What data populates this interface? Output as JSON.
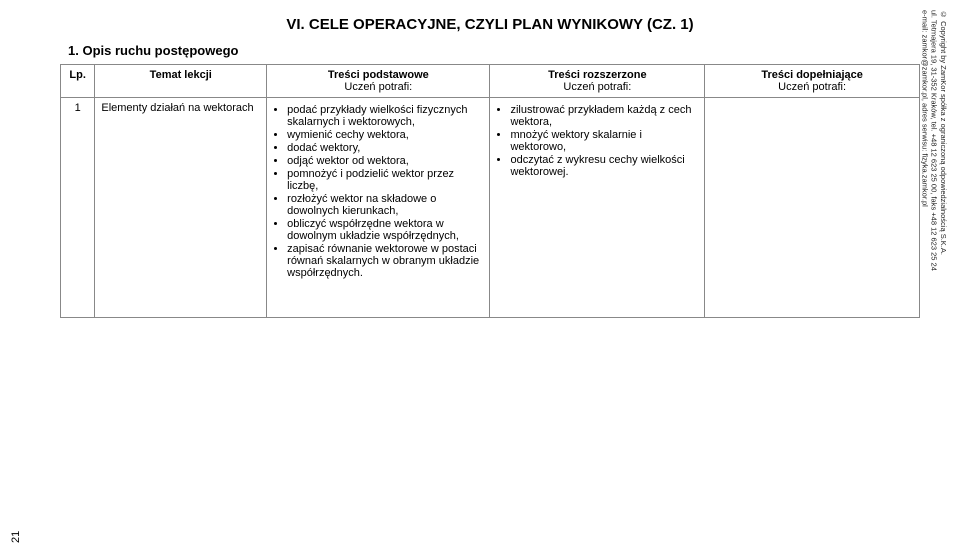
{
  "title": "VI. CELE OPERACYJNE, CZYLI PLAN WYNIKOWY (CZ. 1)",
  "section_heading": "1. Opis ruchu postępowego",
  "table": {
    "columns": {
      "lp": "Lp.",
      "temat": "Temat lekcji",
      "podstawowe_title": "Treści podstawowe",
      "rozszerzone_title": "Treści rozszerzone",
      "dopelniajace_title": "Treści dopełniające",
      "sublabel": "Uczeń potrafi:"
    },
    "row1": {
      "lp": "1",
      "temat": "Elementy działań na wektorach",
      "podstawowe": [
        "podać przykłady wielkości fizycznych skalarnych i wektorowych,",
        "wymienić cechy wektora,",
        "dodać wektory,",
        "odjąć wektor od wektora,",
        "pomnożyć i podzielić wektor przez liczbę,",
        "rozłożyć wektor na składowe o dowolnych kierunkach,",
        "obliczyć współrzędne wektora w dowolnym układzie współrzędnych,",
        "zapisać równanie wektorowe w postaci równań skalarnych w obranym układzie współrzędnych."
      ],
      "rozszerzone": [
        "zilustrować przykładem każdą z cech wektora,",
        "mnożyć wektory skalarnie i wektorowo,",
        "odczytać z wykresu cechy wielkości wektorowej."
      ],
      "dopelniajace": []
    }
  },
  "page_number": "21",
  "copyright": {
    "line1": "© Copyright by ZamKor spółka z ograniczoną odpowiedzialnością S.K.A.",
    "line2": "ul. Tetmajera 19, 31-352 Kraków, tel. +48 12 623 25 00, faks +48 12 623 25 24",
    "line3": "e-mail: zamkor@zamkor.pl, adres serwisu: fizyka.zamkor.pl"
  }
}
